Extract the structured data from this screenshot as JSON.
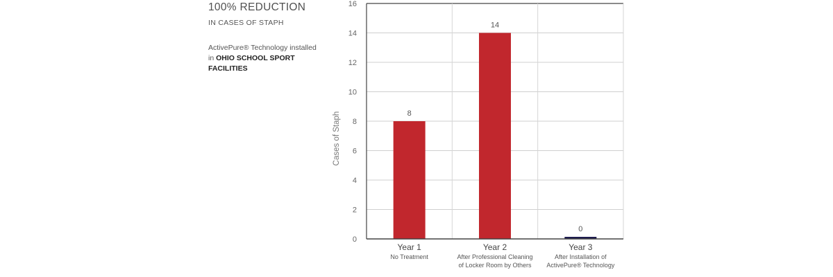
{
  "info": {
    "headline": "100% REDUCTION",
    "subhead": "IN CASES OF STAPH",
    "desc_prefix": "ActivePure® Technology installed in ",
    "desc_strong": "OHIO SCHOOL SPORT FACILITIES"
  },
  "chart_data": {
    "type": "bar",
    "ylabel": "Cases of Staph",
    "ylim": [
      0,
      16
    ],
    "yticks": [
      0,
      2,
      4,
      6,
      8,
      10,
      12,
      14,
      16
    ],
    "grid": true,
    "categories": [
      "Year 1",
      "Year 2",
      "Year 3"
    ],
    "category_sublabels": [
      [
        "No Treatment"
      ],
      [
        "After Professional Cleaning",
        "of Locker Room by Others"
      ],
      [
        "After Installation of",
        "ActivePure® Technology"
      ]
    ],
    "values": [
      8,
      14,
      0
    ],
    "data_labels": [
      "8",
      "14",
      "0"
    ],
    "bar_colors": [
      "#c1272d",
      "#c1272d",
      "#1f1d4f"
    ]
  }
}
